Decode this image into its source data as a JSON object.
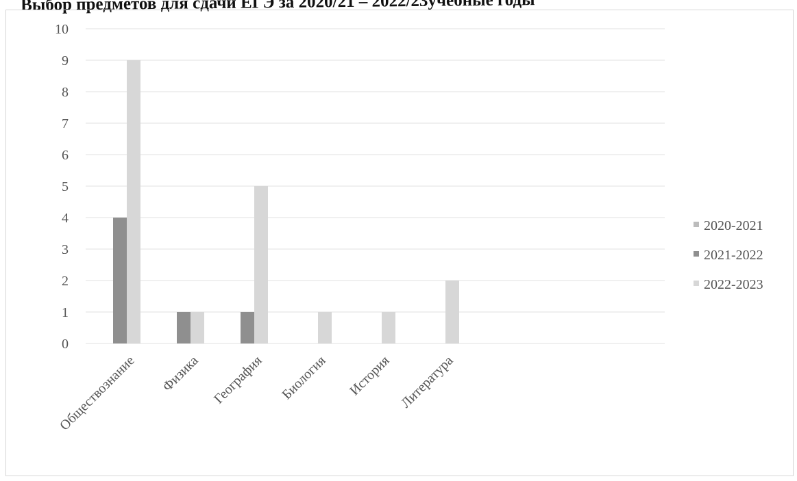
{
  "chart_data": {
    "type": "bar",
    "title": "Выбор предметов для сдачи ЕГЭ за 2020/21 – 2022/23учебные годы",
    "categories": [
      "Обществознание",
      "Физика",
      "География",
      "Биология",
      "История",
      "Литература"
    ],
    "series": [
      {
        "name": "2020-2021",
        "values": [
          0,
          0,
          0,
          0,
          0,
          0
        ],
        "color": "#bcbcbc"
      },
      {
        "name": "2021-2022",
        "values": [
          4,
          1,
          1,
          0,
          0,
          0
        ],
        "color": "#8f8f8f"
      },
      {
        "name": "2022-2023",
        "values": [
          9,
          1,
          5,
          1,
          1,
          2
        ],
        "color": "#d7d7d7"
      }
    ],
    "yticks": [
      "0",
      "1",
      "2",
      "3",
      "4",
      "5",
      "6",
      "7",
      "8",
      "9",
      "10"
    ],
    "ylim": [
      0,
      10
    ],
    "xlabel": "",
    "ylabel": "",
    "grid": true,
    "legend_position": "right"
  }
}
